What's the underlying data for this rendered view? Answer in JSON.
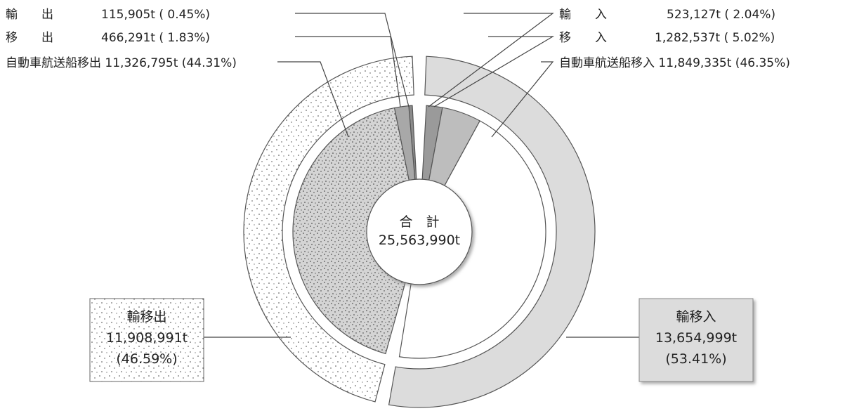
{
  "chart_data": {
    "type": "pie",
    "total": {
      "label": "合　計",
      "value_text": "25,563,990t",
      "value": 25563990
    },
    "outer_ring": [
      {
        "name": "輸移出",
        "value": 11908991,
        "value_text": "11,908,991t",
        "percent_text": "(46.59%)",
        "fill": "#ffffff",
        "pattern": "sparse-dots"
      },
      {
        "name": "輸移入",
        "value": 13654999,
        "value_text": "13,654,999t",
        "percent_text": "(53.41%)",
        "fill": "#dcdcdc"
      }
    ],
    "inner_pie": [
      {
        "name": "自動車航送船移出",
        "value": 11326795,
        "percent": 44.31,
        "text": "自動車航送船移出 11,326,795t (44.31%)",
        "fill": "#d4d4d4",
        "pattern": "dense-dots"
      },
      {
        "name": "移　　出",
        "value": 466291,
        "percent": 1.83,
        "text": "移　　出　　　　466,291t ( 1.83%)",
        "fill": "#a8a8a8"
      },
      {
        "name": "輸　　出",
        "value": 115905,
        "percent": 0.45,
        "text": "輸　　出　　　　115,905t ( 0.45%)",
        "fill": "#8c8c8c"
      },
      {
        "name": "輸　　入",
        "value": 523127,
        "percent": 2.04,
        "text": "輸　　入　　　　　523,127t ( 2.04%)",
        "fill": "#9a9a9a"
      },
      {
        "name": "移　　入",
        "value": 1282537,
        "percent": 5.02,
        "text": "移　　入　　　　1,282,537t ( 5.02%)",
        "fill": "#bdbdbd"
      },
      {
        "name": "自動車航送船移入",
        "value": 11849335,
        "percent": 46.35,
        "text": "自動車航送船移入 11,849,335t (46.35%)",
        "fill": "#ffffff"
      }
    ],
    "colors": {
      "outer_import": "#dcdcdc",
      "stroke": "#555555",
      "leader": "#444444"
    }
  }
}
